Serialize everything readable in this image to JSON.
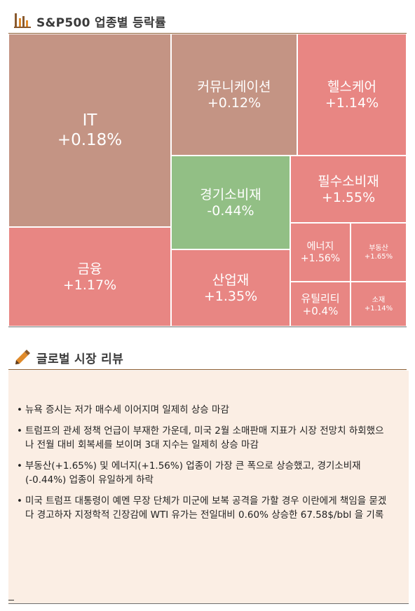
{
  "chart_header": {
    "title": "S&P500 업종별 등락률"
  },
  "chart_data": {
    "type": "treemap",
    "title": "S&P500 업종별 등락률",
    "unit": "%",
    "sectors": [
      {
        "name": "IT",
        "value": 0.18,
        "label": "+0.18%"
      },
      {
        "name": "커뮤니케이션",
        "value": 0.12,
        "label": "+0.12%"
      },
      {
        "name": "헬스케어",
        "value": 1.14,
        "label": "+1.14%"
      },
      {
        "name": "경기소비재",
        "value": -0.44,
        "label": "-0.44%"
      },
      {
        "name": "필수소비재",
        "value": 1.55,
        "label": "+1.55%"
      },
      {
        "name": "금융",
        "value": 1.17,
        "label": "+1.17%"
      },
      {
        "name": "산업재",
        "value": 1.35,
        "label": "+1.35%"
      },
      {
        "name": "에너지",
        "value": 1.56,
        "label": "+1.56%"
      },
      {
        "name": "부동산",
        "value": 1.65,
        "label": "+1.65%"
      },
      {
        "name": "유틸리티",
        "value": 0.4,
        "label": "+0.4%"
      },
      {
        "name": "소재",
        "value": 1.14,
        "label": "+1.14%"
      }
    ]
  },
  "colors": {
    "positive_strong": "#e88683",
    "positive_weak": "#c49484",
    "negative": "#92bf85",
    "accent": "#8a5a2e"
  },
  "review_header": {
    "title": "글로벌 시장 리뷰"
  },
  "review": {
    "items": [
      "뉴욕 증시는 저가 매수세 이어지며 일제히 상승 마감",
      "트럼프의 관세 정책 언급이 부재한 가운데, 미국 2월 소매판매 지표가 시장 전망치 하회했으나 전월 대비 회복세를 보이며 3대 지수는 일제히 상승 마감",
      "부동산(+1.65%) 및 에너지(+1.56%) 업종이 가장 큰 폭으로 상승했고, 경기소비재(-0.44%) 업종이 유일하게 하락",
      "미국 트럼프 대통령이 예멘 무장 단체가 미군에 보복 공격을 가할 경우 이란에게 책임을 묻겠다 경고하자 지정학적 긴장감에 WTI 유가는 전일대비 0.60% 상승한 67.58$/bbl 을 기록"
    ]
  }
}
